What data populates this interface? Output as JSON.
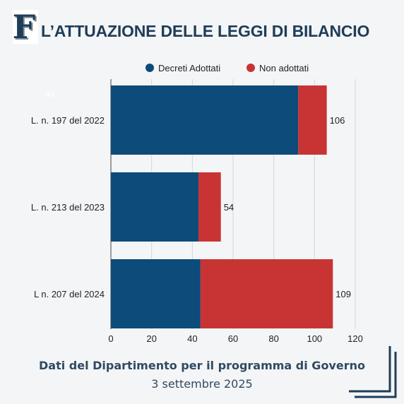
{
  "header": {
    "title": "L’ATTUAZIONE DELLE LEGGI DI BILANCIO",
    "logo_letter": "F"
  },
  "colors": {
    "adottati": "#0d4b7a",
    "non_adottati": "#c83434",
    "title": "#1e3d59",
    "accent": "#2f4a63"
  },
  "chart_data": {
    "type": "bar",
    "orientation": "horizontal",
    "stacked": true,
    "categories": [
      "L. n. 197 del 2022",
      "L. n. 213 del 2023",
      "L n. 207 del 2024"
    ],
    "series": [
      {
        "name": "Decreti Adottati",
        "values": [
          92,
          43,
          44
        ]
      },
      {
        "name": "Non adottati",
        "values": [
          14,
          11,
          65
        ]
      }
    ],
    "totals": [
      "106",
      "54",
      "109"
    ],
    "faint_label": "43",
    "xticks": [
      "0",
      "20",
      "40",
      "60",
      "80",
      "100",
      "120"
    ],
    "xlim": [
      0,
      120
    ],
    "grid": true,
    "legend_position": "top-right"
  },
  "footer": {
    "source": "Dati del Dipartimento per il programma di Governo",
    "date": "3 settembre 2025"
  }
}
